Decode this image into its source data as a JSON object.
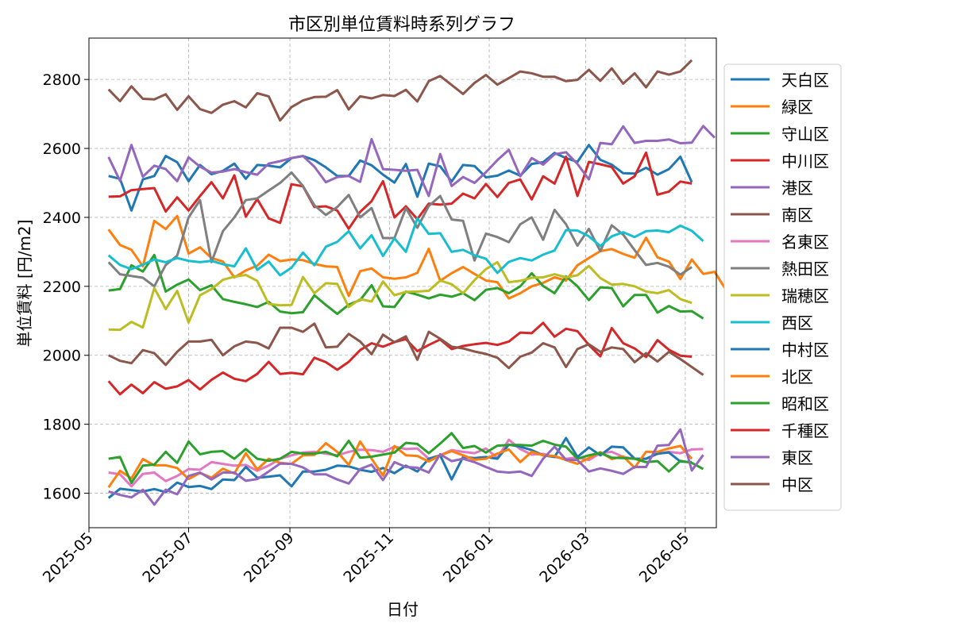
{
  "chart_data": {
    "type": "line",
    "title": "市区別単位賃料時系列グラフ",
    "xlabel": "日付",
    "ylabel": "単位賃料 [円/m2]",
    "ylim": [
      1500,
      2920
    ],
    "xlim": [
      "2025-05-01",
      "2026-05-20"
    ],
    "y_ticks": [
      1600,
      1800,
      2000,
      2200,
      2400,
      2600,
      2800
    ],
    "x_ticks": [
      "2025-05",
      "2025-07",
      "2025-09",
      "2025-11",
      "2026-01",
      "2026-03",
      "2026-05"
    ],
    "x_tick_dates": [
      "2025-05-01",
      "2025-07-01",
      "2025-09-01",
      "2025-11-01",
      "2026-01-01",
      "2026-03-01",
      "2026-05-01"
    ],
    "grid": true,
    "legend_position": "right",
    "x_start": "2025-05-13",
    "x_step_days": 7,
    "series": [
      {
        "name": "天白区",
        "color": "#1f77b4",
        "values": [
          2520,
          2512,
          2420,
          2510,
          2520,
          2578,
          2560,
          2505,
          2552,
          2525,
          2535,
          2556,
          2512,
          2552,
          2550,
          2545,
          2572,
          2578,
          2566,
          2545,
          2520,
          2520,
          2565,
          2551,
          2524,
          2501,
          2555,
          2460,
          2556,
          2548,
          2504,
          2552,
          2549,
          2516,
          2521,
          2536,
          2521,
          2555,
          2560,
          2587,
          2572,
          2561,
          2610,
          2567,
          2553,
          2528,
          2527,
          2544,
          2524,
          2540,
          2576,
          2502
        ]
      },
      {
        "name": "緑区",
        "color": "#ff7f0e",
        "values": [
          2365,
          2320,
          2306,
          2258,
          2390,
          2366,
          2404,
          2295,
          2313,
          2282,
          2272,
          2226,
          2246,
          2260,
          2292,
          2273,
          2278,
          2276,
          2265,
          2258,
          2256,
          2172,
          2244,
          2252,
          2226,
          2222,
          2226,
          2239,
          2309,
          2216,
          2238,
          2256,
          2236,
          2217,
          2212,
          2165,
          2180,
          2200,
          2210,
          2226,
          2217,
          2261,
          2282,
          2302,
          2308,
          2294,
          2283,
          2341,
          2284,
          2272,
          2221,
          2278,
          2236,
          2242,
          2189
        ]
      },
      {
        "name": "守山区",
        "color": "#2ca02c",
        "values": [
          2188,
          2192,
          2261,
          2243,
          2291,
          2185,
          2205,
          2220,
          2189,
          2203,
          2163,
          2155,
          2148,
          2140,
          2155,
          2127,
          2122,
          2125,
          2174,
          2146,
          2120,
          2147,
          2160,
          2203,
          2142,
          2140,
          2185,
          2176,
          2165,
          2176,
          2170,
          2180,
          2160,
          2190,
          2195,
          2180,
          2200,
          2238,
          2201,
          2180,
          2229,
          2200,
          2160,
          2197,
          2195,
          2142,
          2175,
          2175,
          2124,
          2143,
          2127,
          2128,
          2107
        ]
      },
      {
        "name": "中川区",
        "color": "#d62728",
        "values": [
          2460,
          2461,
          2479,
          2482,
          2485,
          2417,
          2458,
          2420,
          2462,
          2502,
          2455,
          2522,
          2402,
          2453,
          2397,
          2384,
          2496,
          2490,
          2430,
          2432,
          2420,
          2367,
          2416,
          2447,
          2505,
          2400,
          2432,
          2395,
          2440,
          2437,
          2440,
          2469,
          2455,
          2497,
          2459,
          2500,
          2510,
          2452,
          2519,
          2498,
          2576,
          2462,
          2561,
          2554,
          2546,
          2498,
          2519,
          2588,
          2466,
          2475,
          2504,
          2498
        ]
      },
      {
        "name": "港区",
        "color": "#9467bd",
        "values": [
          2575,
          2506,
          2610,
          2518,
          2550,
          2540,
          2505,
          2574,
          2547,
          2530,
          2533,
          2540,
          2531,
          2524,
          2556,
          2563,
          2572,
          2578,
          2547,
          2502,
          2517,
          2520,
          2503,
          2627,
          2540,
          2538,
          2535,
          2538,
          2462,
          2584,
          2491,
          2517,
          2500,
          2531,
          2566,
          2596,
          2519,
          2572,
          2553,
          2583,
          2589,
          2555,
          2510,
          2616,
          2612,
          2664,
          2616,
          2622,
          2622,
          2626,
          2615,
          2617,
          2665,
          2631
        ]
      },
      {
        "name": "南区",
        "color": "#8c564b",
        "values": [
          2771,
          2737,
          2780,
          2744,
          2742,
          2757,
          2712,
          2751,
          2714,
          2703,
          2727,
          2737,
          2719,
          2760,
          2751,
          2681,
          2720,
          2739,
          2749,
          2750,
          2769,
          2713,
          2751,
          2745,
          2755,
          2752,
          2770,
          2736,
          2795,
          2810,
          2784,
          2758,
          2790,
          2813,
          2785,
          2804,
          2823,
          2818,
          2808,
          2808,
          2795,
          2799,
          2828,
          2796,
          2832,
          2788,
          2818,
          2777,
          2823,
          2814,
          2823,
          2856
        ]
      },
      {
        "name": "名東区",
        "color": "#e377c2",
        "values": [
          1660,
          1655,
          1620,
          1656,
          1660,
          1635,
          1650,
          1670,
          1668,
          1690,
          1685,
          1680,
          1682,
          1665,
          1680,
          1700,
          1710,
          1718,
          1720,
          1715,
          1710,
          1720,
          1726,
          1725,
          1720,
          1735,
          1728,
          1730,
          1700,
          1710,
          1725,
          1720,
          1716,
          1730,
          1702,
          1755,
          1728,
          1712,
          1714,
          1705,
          1700,
          1704,
          1696,
          1716,
          1720,
          1705,
          1700,
          1700,
          1714,
          1720,
          1716,
          1727,
          1728
        ]
      },
      {
        "name": "熱田区",
        "color": "#7f7f7f",
        "values": [
          2270,
          2235,
          2230,
          2225,
          2200,
          2262,
          2289,
          2400,
          2450,
          2270,
          2360,
          2400,
          2450,
          2455,
          2478,
          2500,
          2530,
          2491,
          2435,
          2407,
          2430,
          2465,
          2400,
          2427,
          2340,
          2340,
          2427,
          2370,
          2433,
          2462,
          2394,
          2390,
          2275,
          2353,
          2343,
          2328,
          2380,
          2400,
          2335,
          2422,
          2380,
          2318,
          2367,
          2302,
          2377,
          2350,
          2305,
          2262,
          2268,
          2257,
          2234,
          2256
        ]
      },
      {
        "name": "瑞穂区",
        "color": "#bcbd22",
        "values": [
          2075,
          2074,
          2097,
          2081,
          2195,
          2134,
          2187,
          2095,
          2174,
          2192,
          2219,
          2228,
          2233,
          2216,
          2149,
          2145,
          2146,
          2227,
          2180,
          2209,
          2207,
          2140,
          2163,
          2156,
          2214,
          2174,
          2184,
          2185,
          2187,
          2217,
          2206,
          2180,
          2218,
          2250,
          2270,
          2212,
          2216,
          2225,
          2226,
          2235,
          2226,
          2232,
          2259,
          2224,
          2205,
          2207,
          2200,
          2185,
          2180,
          2189,
          2163,
          2152
        ]
      },
      {
        "name": "西区",
        "color": "#17becf",
        "values": [
          2290,
          2262,
          2250,
          2263,
          2278,
          2270,
          2282,
          2274,
          2270,
          2274,
          2264,
          2258,
          2310,
          2248,
          2272,
          2232,
          2254,
          2298,
          2261,
          2315,
          2329,
          2360,
          2310,
          2348,
          2288,
          2339,
          2300,
          2397,
          2352,
          2354,
          2300,
          2306,
          2290,
          2280,
          2239,
          2271,
          2282,
          2275,
          2292,
          2304,
          2363,
          2362,
          2345,
          2317,
          2345,
          2357,
          2343,
          2360,
          2362,
          2357,
          2376,
          2361,
          2331
        ]
      },
      {
        "name": "中村区",
        "color": "#1f77b4",
        "values": [
          1586,
          1613,
          1609,
          1605,
          1612,
          1603,
          1631,
          1618,
          1621,
          1612,
          1640,
          1638,
          1676,
          1645,
          1648,
          1652,
          1620,
          1663,
          1663,
          1668,
          1680,
          1678,
          1668,
          1662,
          1673,
          1658,
          1680,
          1663,
          1700,
          1710,
          1640,
          1705,
          1702,
          1705,
          1700,
          1741,
          1735,
          1725,
          1710,
          1705,
          1760,
          1705,
          1733,
          1710,
          1735,
          1733,
          1700,
          1700,
          1715,
          1718,
          1692,
          1690
        ]
      },
      {
        "name": "北区",
        "color": "#ff7f0e",
        "values": [
          1617,
          1665,
          1643,
          1699,
          1681,
          1681,
          1673,
          1641,
          1659,
          1645,
          1671,
          1657,
          1716,
          1669,
          1700,
          1688,
          1685,
          1710,
          1711,
          1745,
          1720,
          1682,
          1750,
          1700,
          1651,
          1737,
          1710,
          1708,
          1692,
          1710,
          1722,
          1710,
          1697,
          1700,
          1715,
          1727,
          1690,
          1720,
          1710,
          1708,
          1696,
          1685,
          1702,
          1719,
          1699,
          1707,
          1674,
          1720,
          1720,
          1730,
          1737,
          1700
        ]
      },
      {
        "name": "昭和区",
        "color": "#2ca02c",
        "values": [
          1700,
          1705,
          1630,
          1680,
          1683,
          1720,
          1688,
          1750,
          1713,
          1720,
          1722,
          1700,
          1728,
          1700,
          1694,
          1700,
          1720,
          1715,
          1715,
          1720,
          1707,
          1752,
          1703,
          1706,
          1712,
          1718,
          1746,
          1743,
          1716,
          1744,
          1774,
          1731,
          1737,
          1718,
          1738,
          1740,
          1740,
          1738,
          1752,
          1741,
          1735,
          1700,
          1710,
          1717,
          1703,
          1702,
          1700,
          1690,
          1693,
          1663,
          1694,
          1688,
          1670
        ]
      },
      {
        "name": "千種区",
        "color": "#d62728",
        "values": [
          1925,
          1887,
          1915,
          1890,
          1922,
          1903,
          1910,
          1928,
          1901,
          1929,
          1950,
          1932,
          1925,
          1946,
          1981,
          1946,
          1949,
          1945,
          1993,
          1980,
          1958,
          1981,
          2015,
          2035,
          2025,
          2038,
          2047,
          2012,
          2030,
          2046,
          2018,
          2027,
          2032,
          2036,
          2030,
          2040,
          2066,
          2064,
          2094,
          2054,
          2077,
          2070,
          2030,
          1997,
          2079,
          2035,
          2020,
          1995,
          2044,
          2016,
          1999,
          1996
        ]
      },
      {
        "name": "東区",
        "color": "#9467bd",
        "values": [
          1605,
          1595,
          1588,
          1610,
          1567,
          1610,
          1597,
          1650,
          1660,
          1640,
          1660,
          1660,
          1636,
          1641,
          1663,
          1686,
          1685,
          1675,
          1655,
          1655,
          1640,
          1628,
          1670,
          1683,
          1638,
          1690,
          1676,
          1674,
          1660,
          1713,
          1693,
          1700,
          1690,
          1676,
          1663,
          1660,
          1663,
          1650,
          1700,
          1735,
          1697,
          1696,
          1663,
          1672,
          1665,
          1656,
          1676,
          1676,
          1738,
          1740,
          1785,
          1666,
          1711
        ]
      },
      {
        "name": "中区",
        "color": "#8c564b",
        "values": [
          2000,
          1984,
          1977,
          2015,
          2006,
          1972,
          2010,
          2040,
          2040,
          2045,
          2000,
          2026,
          2040,
          2036,
          2020,
          2080,
          2080,
          2068,
          2092,
          2023,
          2025,
          2062,
          2040,
          2003,
          2060,
          2038,
          2055,
          1987,
          2068,
          2048,
          2025,
          2020,
          2011,
          2004,
          1993,
          1963,
          1996,
          2008,
          2035,
          2023,
          1966,
          2018,
          2032,
          2010,
          2023,
          2018,
          1980,
          2006,
          1982,
          2010,
          1989,
          1966,
          1943
        ]
      }
    ]
  }
}
